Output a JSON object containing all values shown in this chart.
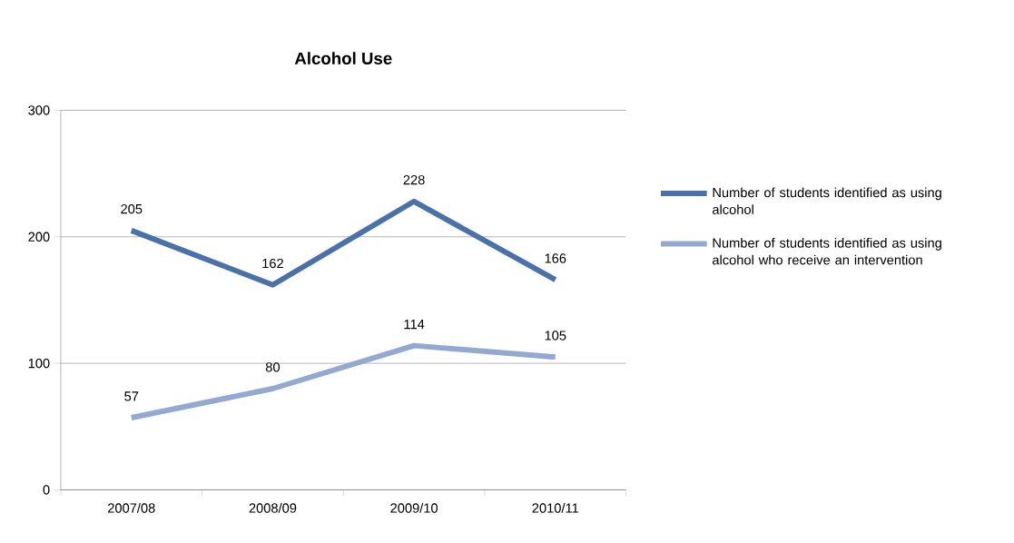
{
  "chart_data": {
    "type": "line",
    "title": "Alcohol Use",
    "categories": [
      "2007/08",
      "2008/09",
      "2009/10",
      "2010/11"
    ],
    "series": [
      {
        "name": "Number of students identified as using alcohol",
        "color": "#4a71a8",
        "values": [
          205,
          162,
          228,
          166
        ]
      },
      {
        "name": "Number of students identified as using alcohol who receive an intervention",
        "color": "#93a9d2",
        "values": [
          57,
          80,
          114,
          105
        ]
      }
    ],
    "ylim": [
      0,
      300
    ],
    "yticks": [
      0,
      100,
      200,
      300
    ],
    "grid": "y",
    "legend": "right",
    "data_labels": true,
    "marker": "none",
    "line_style": "solid"
  }
}
